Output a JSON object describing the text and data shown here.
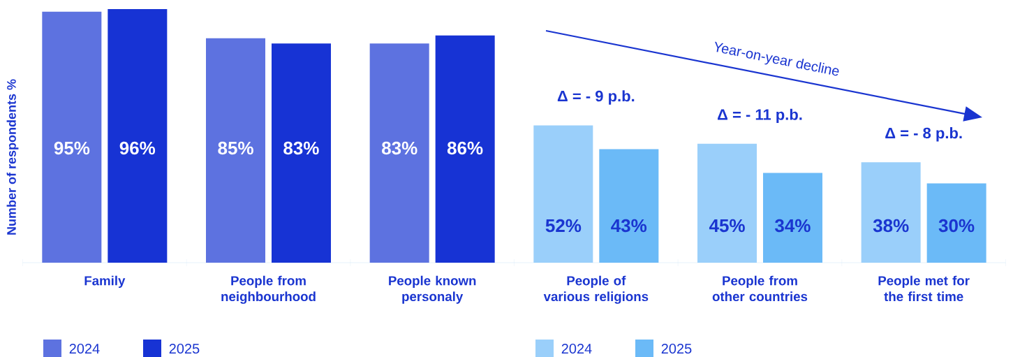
{
  "chart_data": {
    "type": "bar",
    "ylabel": "Number of respondents %",
    "categories": [
      "Family",
      "People from neighbourhood",
      "People known personaly",
      "People of various religions",
      "People from other countries",
      "People met for the first time"
    ],
    "series": [
      {
        "name": "2024",
        "color": "#5d72e0",
        "values": [
          95,
          85,
          83,
          null,
          null,
          null
        ],
        "value_labels": [
          "95%",
          "85%",
          "83%",
          null,
          null,
          null
        ]
      },
      {
        "name": "2025",
        "color": "#1733d4",
        "values": [
          96,
          83,
          86,
          null,
          null,
          null
        ],
        "value_labels": [
          "96%",
          "83%",
          "86%",
          null,
          null,
          null
        ]
      },
      {
        "name": "2024",
        "color": "#9acffa",
        "values": [
          null,
          null,
          null,
          52,
          45,
          38
        ],
        "value_labels": [
          null,
          null,
          null,
          "52%",
          "45%",
          "38%"
        ]
      },
      {
        "name": "2025",
        "color": "#6bbaf7",
        "values": [
          null,
          null,
          null,
          43,
          34,
          30
        ],
        "value_labels": [
          null,
          null,
          null,
          "43%",
          "34%",
          "30%"
        ]
      }
    ],
    "legend": "bottom",
    "annotations": [
      "Year-on-year decline",
      "Δ = - 9 p.b.",
      "Δ = - 11 p.b.",
      "Δ = - 8 p.b."
    ]
  }
}
